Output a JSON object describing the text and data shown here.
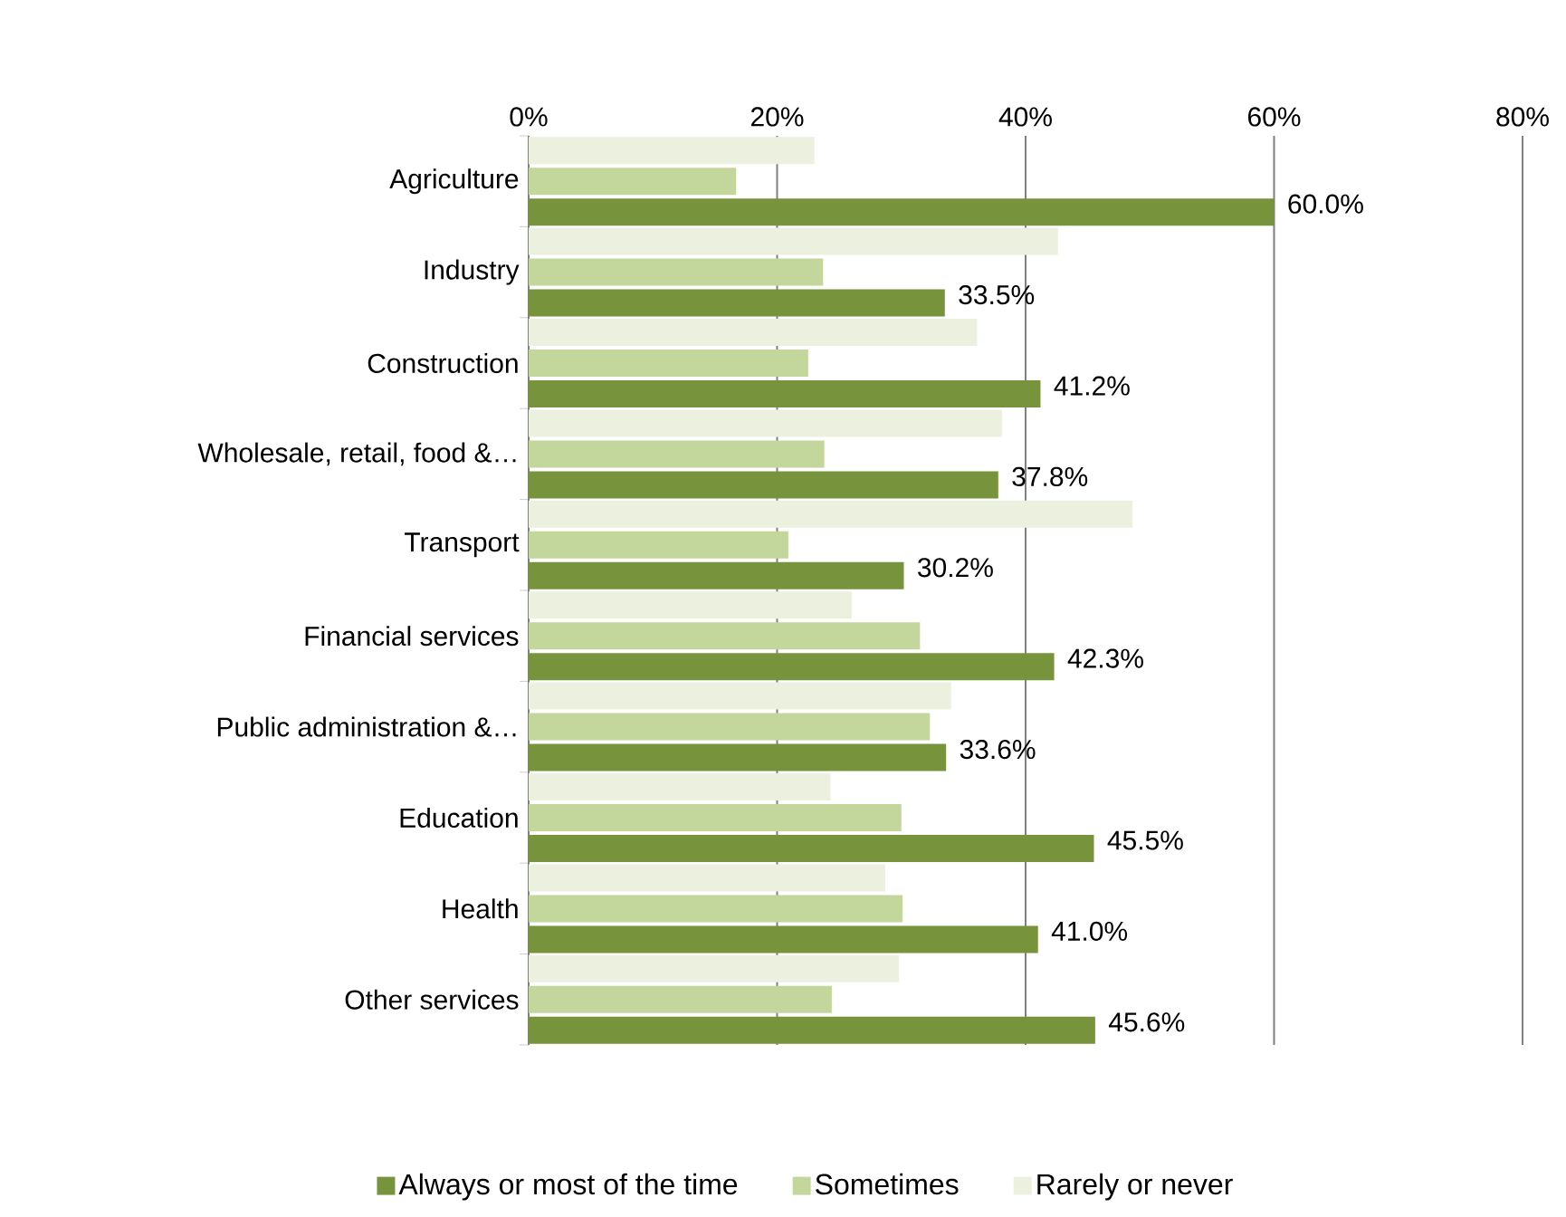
{
  "chart_data": {
    "type": "bar",
    "orientation": "horizontal",
    "categories": [
      "Agriculture",
      "Industry",
      "Construction",
      "Wholesale, retail, food &…",
      "Transport",
      "Financial services",
      "Public administration &…",
      "Education",
      "Health",
      "Other services"
    ],
    "series": [
      {
        "name": "Always or most of the time",
        "color": "#77933c",
        "values": [
          60.0,
          33.5,
          41.2,
          37.8,
          30.2,
          42.3,
          33.6,
          45.5,
          41.0,
          45.6
        ],
        "value_labels": [
          "60.0%",
          "33.5%",
          "41.2%",
          "37.8%",
          "30.2%",
          "42.3%",
          "33.6%",
          "45.5%",
          "41.0%",
          "45.6%"
        ]
      },
      {
        "name": "Sometimes",
        "color": "#c3d69b",
        "values": [
          16.7,
          23.7,
          22.5,
          23.8,
          20.9,
          31.5,
          32.3,
          30.0,
          30.1,
          24.4
        ]
      },
      {
        "name": "Rarely or never",
        "color": "#ebf1de",
        "values": [
          23.0,
          42.6,
          36.1,
          38.1,
          48.6,
          26.0,
          34.0,
          24.3,
          28.7,
          29.8
        ]
      }
    ],
    "xlim": [
      0,
      80
    ],
    "xticks": [
      {
        "value": 0,
        "label": "0%"
      },
      {
        "value": 20,
        "label": "20%"
      },
      {
        "value": 40,
        "label": "40%"
      },
      {
        "value": 60,
        "label": "60%"
      },
      {
        "value": 80,
        "label": "80%"
      }
    ],
    "grid": "x",
    "legend": "bottom"
  }
}
